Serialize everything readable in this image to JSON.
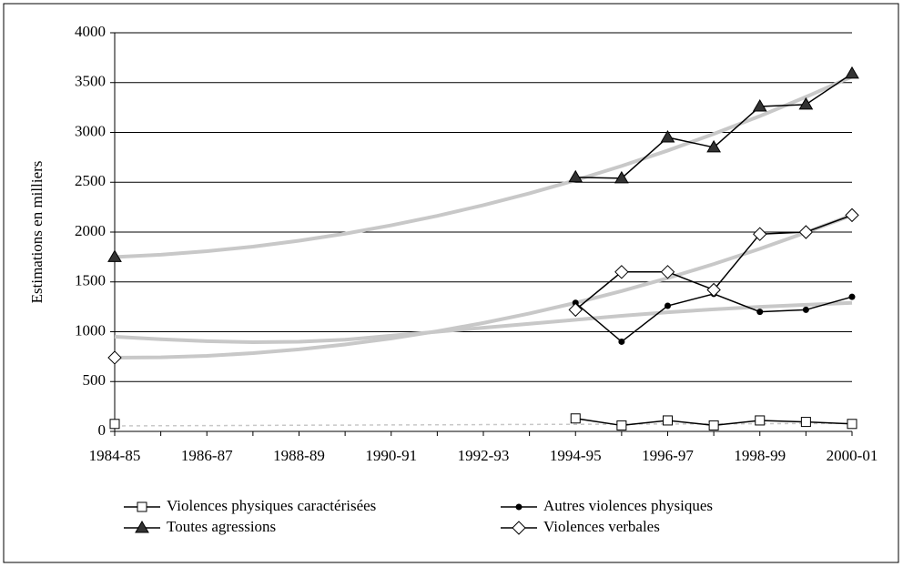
{
  "chart_data": {
    "type": "line",
    "y_label": "Estimations en milliers",
    "categories": [
      "1984-85",
      null,
      "1986-87",
      null,
      "1988-89",
      null,
      "1990-91",
      null,
      "1992-93",
      null,
      "1994-95",
      null,
      "1996-97",
      null,
      "1998-99",
      null,
      "2000-01"
    ],
    "ylim": [
      0,
      4000
    ],
    "yticks": [
      0,
      500,
      1000,
      1500,
      2000,
      2500,
      3000,
      3500,
      4000
    ],
    "grid": true,
    "trend_color": "#c8c8c8",
    "series": [
      {
        "name": "Violences physiques caractérisées",
        "color": "#000000",
        "marker": "square",
        "trend_dashed": true,
        "values": [
          75,
          null,
          null,
          null,
          null,
          null,
          null,
          null,
          null,
          null,
          130,
          60,
          110,
          60,
          110,
          95,
          75
        ],
        "trend": [
          55,
          57,
          58,
          60,
          62,
          63,
          65,
          66,
          68,
          70,
          71,
          73,
          74,
          76,
          77,
          79,
          80
        ]
      },
      {
        "name": "Autres violences physiques",
        "color": "#000000",
        "marker": "dot",
        "values": [
          null,
          null,
          null,
          null,
          null,
          null,
          null,
          null,
          null,
          null,
          1290,
          900,
          1260,
          1380,
          1200,
          1220,
          1350
        ],
        "trend": [
          950,
          925,
          905,
          895,
          900,
          920,
          960,
          1000,
          1040,
          1080,
          1120,
          1160,
          1195,
          1225,
          1250,
          1270,
          1290
        ]
      },
      {
        "name": "Toutes agressions",
        "color": "#000000",
        "marker": "triangle",
        "values": [
          1750,
          null,
          null,
          null,
          null,
          null,
          null,
          null,
          null,
          null,
          2550,
          2540,
          2950,
          2850,
          3260,
          3280,
          3590
        ],
        "trend": [
          1750,
          1773,
          1808,
          1854,
          1913,
          1984,
          2068,
          2163,
          2270,
          2389,
          2520,
          2663,
          2818,
          2985,
          3164,
          3356,
          3560
        ]
      },
      {
        "name": "Violences verbales",
        "color": "#000000",
        "marker": "diamond",
        "values": [
          740,
          null,
          null,
          null,
          null,
          null,
          null,
          null,
          null,
          null,
          1220,
          1600,
          1600,
          1420,
          1980,
          2000,
          2170
        ],
        "trend": [
          740,
          743,
          758,
          785,
          823,
          872,
          932,
          1005,
          1088,
          1183,
          1290,
          1408,
          1538,
          1679,
          1832,
          1996,
          2170
        ]
      }
    ]
  }
}
